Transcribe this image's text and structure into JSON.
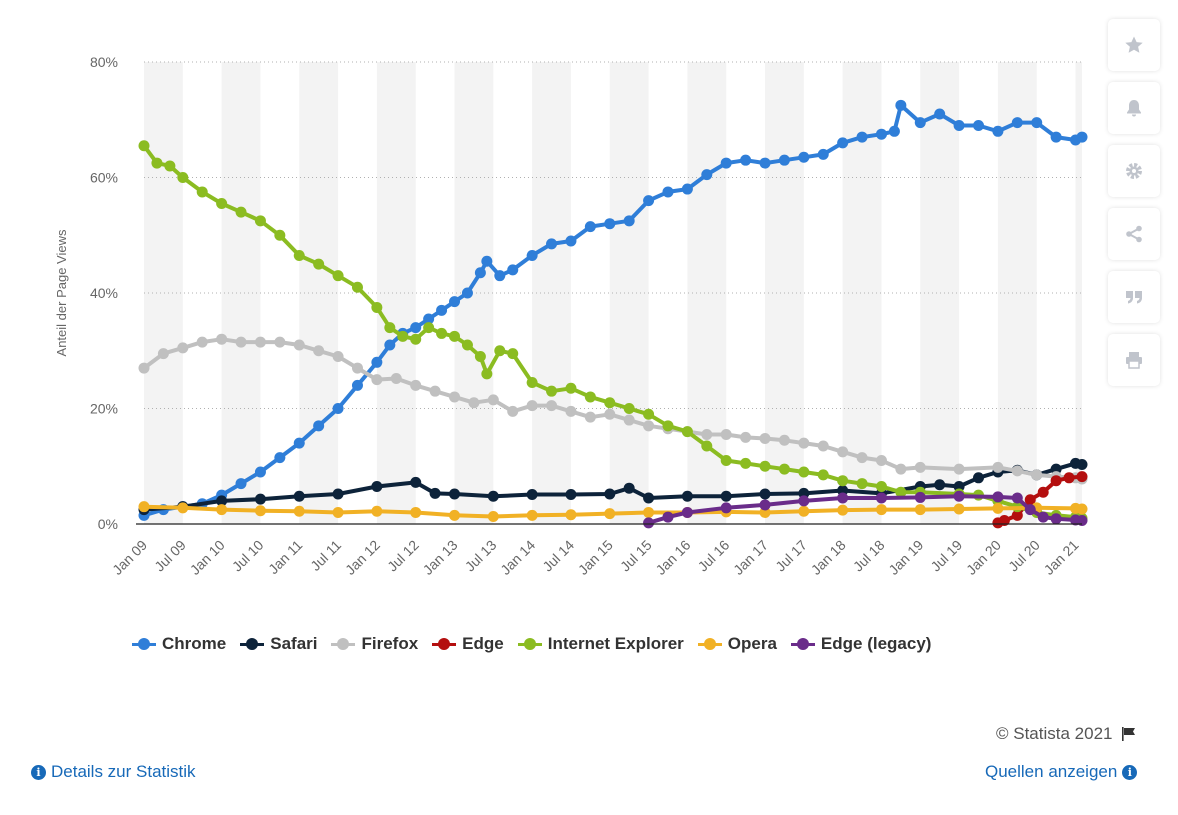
{
  "chart_data": {
    "type": "line",
    "title": "",
    "xlabel": "",
    "ylabel": "Anteil der Page Views",
    "ylim": [
      0,
      80
    ],
    "y_ticks": [
      0,
      20,
      40,
      60,
      80
    ],
    "y_tick_labels": [
      "0%",
      "20%",
      "40%",
      "60%",
      "80%"
    ],
    "x_start": "2009-01",
    "x_end": "2021-02",
    "x_tick_labels": [
      {
        "month": "2009-01",
        "label": "Jan 09"
      },
      {
        "month": "2009-07",
        "label": "Jul 09"
      },
      {
        "month": "2010-01",
        "label": "Jan 10"
      },
      {
        "month": "2010-07",
        "label": "Jul 10"
      },
      {
        "month": "2011-01",
        "label": "Jan 11"
      },
      {
        "month": "2011-07",
        "label": "Jul 11"
      },
      {
        "month": "2012-01",
        "label": "Jan 12"
      },
      {
        "month": "2012-07",
        "label": "Jul 12"
      },
      {
        "month": "2013-01",
        "label": "Jan 13"
      },
      {
        "month": "2013-07",
        "label": "Jul 13"
      },
      {
        "month": "2014-01",
        "label": "Jan 14"
      },
      {
        "month": "2014-07",
        "label": "Jul 14"
      },
      {
        "month": "2015-01",
        "label": "Jan 15"
      },
      {
        "month": "2015-07",
        "label": "Jul 15"
      },
      {
        "month": "2016-01",
        "label": "Jan 16"
      },
      {
        "month": "2016-07",
        "label": "Jul 16"
      },
      {
        "month": "2017-01",
        "label": "Jan 17"
      },
      {
        "month": "2017-07",
        "label": "Jul 17"
      },
      {
        "month": "2018-01",
        "label": "Jan 18"
      },
      {
        "month": "2018-07",
        "label": "Jul 18"
      },
      {
        "month": "2019-01",
        "label": "Jan 19"
      },
      {
        "month": "2019-07",
        "label": "Jul 19"
      },
      {
        "month": "2020-01",
        "label": "Jan 20"
      },
      {
        "month": "2020-07",
        "label": "Jul 20"
      },
      {
        "month": "2021-01",
        "label": "Jan 21"
      }
    ],
    "grid": "horizontal dotted, alternating vertical bands",
    "legend_position": "bottom",
    "series": [
      {
        "name": "Chrome",
        "color": "#2f7ed8",
        "points": [
          [
            "2009-01",
            1.5
          ],
          [
            "2009-04",
            2.5
          ],
          [
            "2009-07",
            3
          ],
          [
            "2009-10",
            3.5
          ],
          [
            "2010-01",
            5
          ],
          [
            "2010-04",
            7
          ],
          [
            "2010-07",
            9
          ],
          [
            "2010-10",
            11.5
          ],
          [
            "2011-01",
            14
          ],
          [
            "2011-04",
            17
          ],
          [
            "2011-07",
            20
          ],
          [
            "2011-10",
            24
          ],
          [
            "2012-01",
            28
          ],
          [
            "2012-03",
            31
          ],
          [
            "2012-05",
            33
          ],
          [
            "2012-07",
            34
          ],
          [
            "2012-09",
            35.5
          ],
          [
            "2012-11",
            37
          ],
          [
            "2013-01",
            38.5
          ],
          [
            "2013-03",
            40
          ],
          [
            "2013-05",
            43.5
          ],
          [
            "2013-06",
            45.5
          ],
          [
            "2013-08",
            43
          ],
          [
            "2013-10",
            44
          ],
          [
            "2014-01",
            46.5
          ],
          [
            "2014-04",
            48.5
          ],
          [
            "2014-07",
            49
          ],
          [
            "2014-10",
            51.5
          ],
          [
            "2015-01",
            52
          ],
          [
            "2015-04",
            52.5
          ],
          [
            "2015-07",
            56
          ],
          [
            "2015-10",
            57.5
          ],
          [
            "2016-01",
            58
          ],
          [
            "2016-04",
            60.5
          ],
          [
            "2016-07",
            62.5
          ],
          [
            "2016-10",
            63
          ],
          [
            "2017-01",
            62.5
          ],
          [
            "2017-04",
            63
          ],
          [
            "2017-07",
            63.5
          ],
          [
            "2017-10",
            64
          ],
          [
            "2018-01",
            66
          ],
          [
            "2018-04",
            67
          ],
          [
            "2018-07",
            67.5
          ],
          [
            "2018-09",
            68
          ],
          [
            "2018-10",
            72.5
          ],
          [
            "2019-01",
            69.5
          ],
          [
            "2019-04",
            71
          ],
          [
            "2019-07",
            69
          ],
          [
            "2019-10",
            69
          ],
          [
            "2020-01",
            68
          ],
          [
            "2020-04",
            69.5
          ],
          [
            "2020-07",
            69.5
          ],
          [
            "2020-10",
            67
          ],
          [
            "2021-01",
            66.5
          ],
          [
            "2021-02",
            67
          ]
        ]
      },
      {
        "name": "Safari",
        "color": "#0d233a",
        "points": [
          [
            "2009-01",
            2.5
          ],
          [
            "2009-07",
            3
          ],
          [
            "2010-01",
            4
          ],
          [
            "2010-07",
            4.3
          ],
          [
            "2011-01",
            4.8
          ],
          [
            "2011-07",
            5.2
          ],
          [
            "2012-01",
            6.5
          ],
          [
            "2012-07",
            7.2
          ],
          [
            "2012-10",
            5.3
          ],
          [
            "2013-01",
            5.2
          ],
          [
            "2013-07",
            4.8
          ],
          [
            "2014-01",
            5.1
          ],
          [
            "2014-07",
            5.1
          ],
          [
            "2015-01",
            5.2
          ],
          [
            "2015-04",
            6.2
          ],
          [
            "2015-07",
            4.5
          ],
          [
            "2016-01",
            4.8
          ],
          [
            "2016-07",
            4.8
          ],
          [
            "2017-01",
            5.2
          ],
          [
            "2017-07",
            5.3
          ],
          [
            "2018-01",
            5.8
          ],
          [
            "2018-07",
            5.3
          ],
          [
            "2019-01",
            6.5
          ],
          [
            "2019-04",
            6.8
          ],
          [
            "2019-07",
            6.5
          ],
          [
            "2019-10",
            8
          ],
          [
            "2020-01",
            9
          ],
          [
            "2020-04",
            9.3
          ],
          [
            "2020-07",
            8.5
          ],
          [
            "2020-10",
            9.5
          ],
          [
            "2021-01",
            10.5
          ],
          [
            "2021-02",
            10.3
          ]
        ]
      },
      {
        "name": "Firefox",
        "color": "#c0c0c0",
        "points": [
          [
            "2009-01",
            27
          ],
          [
            "2009-04",
            29.5
          ],
          [
            "2009-07",
            30.5
          ],
          [
            "2009-10",
            31.5
          ],
          [
            "2010-01",
            32
          ],
          [
            "2010-04",
            31.5
          ],
          [
            "2010-07",
            31.5
          ],
          [
            "2010-10",
            31.5
          ],
          [
            "2011-01",
            31
          ],
          [
            "2011-04",
            30
          ],
          [
            "2011-07",
            29
          ],
          [
            "2011-10",
            27
          ],
          [
            "2012-01",
            25
          ],
          [
            "2012-04",
            25.2
          ],
          [
            "2012-07",
            24
          ],
          [
            "2012-10",
            23
          ],
          [
            "2013-01",
            22
          ],
          [
            "2013-04",
            21
          ],
          [
            "2013-07",
            21.5
          ],
          [
            "2013-10",
            19.5
          ],
          [
            "2014-01",
            20.5
          ],
          [
            "2014-04",
            20.5
          ],
          [
            "2014-07",
            19.5
          ],
          [
            "2014-10",
            18.5
          ],
          [
            "2015-01",
            19
          ],
          [
            "2015-04",
            18
          ],
          [
            "2015-07",
            17
          ],
          [
            "2015-10",
            16.5
          ],
          [
            "2016-01",
            16
          ],
          [
            "2016-04",
            15.5
          ],
          [
            "2016-07",
            15.5
          ],
          [
            "2016-10",
            15
          ],
          [
            "2017-01",
            14.8
          ],
          [
            "2017-04",
            14.5
          ],
          [
            "2017-07",
            14
          ],
          [
            "2017-10",
            13.5
          ],
          [
            "2018-01",
            12.5
          ],
          [
            "2018-04",
            11.5
          ],
          [
            "2018-07",
            11
          ],
          [
            "2018-10",
            9.5
          ],
          [
            "2019-01",
            9.8
          ],
          [
            "2019-07",
            9.5
          ],
          [
            "2020-01",
            9.8
          ],
          [
            "2020-04",
            9.2
          ],
          [
            "2020-07",
            8.5
          ],
          [
            "2020-10",
            8.2
          ],
          [
            "2021-01",
            8
          ],
          [
            "2021-02",
            7.8
          ]
        ]
      },
      {
        "name": "Edge",
        "color": "#b40f0f",
        "points": [
          [
            "2020-01",
            0.2
          ],
          [
            "2020-02",
            0.6
          ],
          [
            "2020-04",
            1.5
          ],
          [
            "2020-06",
            4.2
          ],
          [
            "2020-08",
            5.5
          ],
          [
            "2020-10",
            7.5
          ],
          [
            "2020-12",
            8
          ],
          [
            "2021-02",
            8.2
          ]
        ]
      },
      {
        "name": "Internet Explorer",
        "color": "#8bbc21",
        "points": [
          [
            "2009-01",
            65.5
          ],
          [
            "2009-03",
            62.5
          ],
          [
            "2009-05",
            62
          ],
          [
            "2009-07",
            60
          ],
          [
            "2009-10",
            57.5
          ],
          [
            "2010-01",
            55.5
          ],
          [
            "2010-04",
            54
          ],
          [
            "2010-07",
            52.5
          ],
          [
            "2010-10",
            50
          ],
          [
            "2011-01",
            46.5
          ],
          [
            "2011-04",
            45
          ],
          [
            "2011-07",
            43
          ],
          [
            "2011-10",
            41
          ],
          [
            "2012-01",
            37.5
          ],
          [
            "2012-03",
            34
          ],
          [
            "2012-05",
            32.5
          ],
          [
            "2012-07",
            32
          ],
          [
            "2012-09",
            34
          ],
          [
            "2012-11",
            33
          ],
          [
            "2013-01",
            32.5
          ],
          [
            "2013-03",
            31
          ],
          [
            "2013-05",
            29
          ],
          [
            "2013-06",
            26
          ],
          [
            "2013-08",
            30
          ],
          [
            "2013-10",
            29.5
          ],
          [
            "2014-01",
            24.5
          ],
          [
            "2014-04",
            23
          ],
          [
            "2014-07",
            23.5
          ],
          [
            "2014-10",
            22
          ],
          [
            "2015-01",
            21
          ],
          [
            "2015-04",
            20
          ],
          [
            "2015-07",
            19
          ],
          [
            "2015-10",
            17
          ],
          [
            "2016-01",
            16
          ],
          [
            "2016-04",
            13.5
          ],
          [
            "2016-07",
            11
          ],
          [
            "2016-10",
            10.5
          ],
          [
            "2017-01",
            10
          ],
          [
            "2017-04",
            9.5
          ],
          [
            "2017-07",
            9
          ],
          [
            "2017-10",
            8.5
          ],
          [
            "2018-01",
            7.5
          ],
          [
            "2018-04",
            7
          ],
          [
            "2018-07",
            6.5
          ],
          [
            "2018-10",
            5.5
          ],
          [
            "2019-01",
            5.5
          ],
          [
            "2019-07",
            5.2
          ],
          [
            "2019-10",
            5
          ],
          [
            "2020-01",
            4
          ],
          [
            "2020-04",
            3
          ],
          [
            "2020-07",
            2
          ],
          [
            "2020-10",
            1.5
          ],
          [
            "2021-01",
            1.2
          ],
          [
            "2021-02",
            1
          ]
        ]
      },
      {
        "name": "Opera",
        "color": "#f1b125",
        "points": [
          [
            "2009-01",
            3
          ],
          [
            "2009-07",
            2.8
          ],
          [
            "2010-01",
            2.5
          ],
          [
            "2010-07",
            2.3
          ],
          [
            "2011-01",
            2.2
          ],
          [
            "2011-07",
            2
          ],
          [
            "2012-01",
            2.2
          ],
          [
            "2012-07",
            2
          ],
          [
            "2013-01",
            1.5
          ],
          [
            "2013-07",
            1.3
          ],
          [
            "2014-01",
            1.5
          ],
          [
            "2014-07",
            1.6
          ],
          [
            "2015-01",
            1.8
          ],
          [
            "2015-07",
            2
          ],
          [
            "2016-01",
            2
          ],
          [
            "2016-07",
            2.1
          ],
          [
            "2017-01",
            2
          ],
          [
            "2017-07",
            2.2
          ],
          [
            "2018-01",
            2.4
          ],
          [
            "2018-07",
            2.5
          ],
          [
            "2019-01",
            2.5
          ],
          [
            "2019-07",
            2.6
          ],
          [
            "2020-01",
            2.7
          ],
          [
            "2020-07",
            2.8
          ],
          [
            "2021-01",
            2.7
          ],
          [
            "2021-02",
            2.6
          ]
        ]
      },
      {
        "name": "Edge (legacy)",
        "color": "#6a2c8a",
        "points": [
          [
            "2015-07",
            0.2
          ],
          [
            "2015-10",
            1.2
          ],
          [
            "2016-01",
            2
          ],
          [
            "2016-07",
            2.8
          ],
          [
            "2017-01",
            3.3
          ],
          [
            "2017-07",
            4
          ],
          [
            "2018-01",
            4.5
          ],
          [
            "2018-07",
            4.5
          ],
          [
            "2019-01",
            4.6
          ],
          [
            "2019-07",
            4.8
          ],
          [
            "2020-01",
            4.7
          ],
          [
            "2020-04",
            4.5
          ],
          [
            "2020-06",
            2.5
          ],
          [
            "2020-08",
            1.2
          ],
          [
            "2020-10",
            0.9
          ],
          [
            "2021-01",
            0.7
          ],
          [
            "2021-02",
            0.6
          ]
        ]
      }
    ]
  },
  "toolbar": {
    "icons": [
      "star-icon",
      "bell-icon",
      "gear-icon",
      "share-icon",
      "quote-icon",
      "print-icon"
    ]
  },
  "footer": {
    "credit": "© Statista 2021",
    "details_link": "Details zur Statistik",
    "sources_link": "Quellen anzeigen"
  }
}
